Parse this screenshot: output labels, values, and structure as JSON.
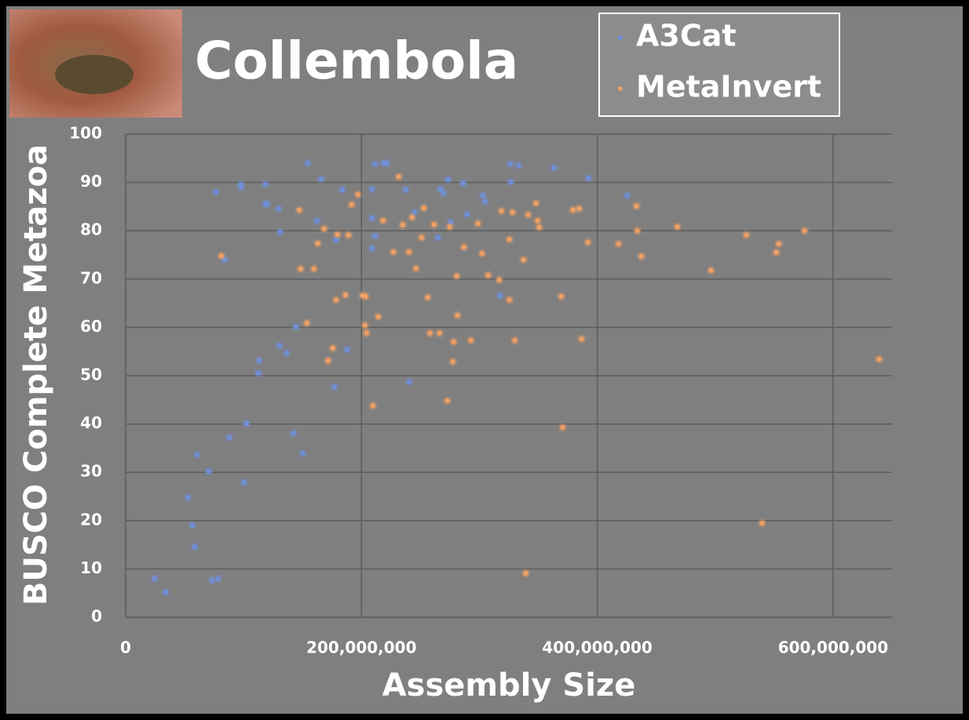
{
  "chart_data": {
    "type": "scatter",
    "title": "Collembola",
    "x_label": "Assembly Size",
    "y_label": "BUSCO Complete Metazoa",
    "xlim": [
      0,
      650000000
    ],
    "ylim": [
      0,
      100
    ],
    "xticks": [
      0,
      {
        "value": 200000000,
        "label": "200,000,000"
      },
      {
        "value": 400000000,
        "label": "400,000,000"
      },
      {
        "value": 600000000,
        "label": "600,000,000"
      }
    ],
    "yticks": [
      0,
      10,
      20,
      30,
      40,
      50,
      60,
      70,
      80,
      90,
      100
    ],
    "grid": true,
    "series": [
      {
        "name": "A3Cat",
        "color": "#6f8fd8",
        "x": [
          24600000,
          34000000,
          53000000,
          56600000,
          58600000,
          60600000,
          70500000,
          73200000,
          78500000,
          76500000,
          83900000,
          87900000,
          97800000,
          97800000,
          100500000,
          102500000,
          113100000,
          112500000,
          118500000,
          118500000,
          119800000,
          129800000,
          131100000,
          130400000,
          136400000,
          142400000,
          144400000,
          150400000,
          154400000,
          162400000,
          165700000,
          178400000,
          177000000,
          183700000,
          187700000,
          209000000,
          209000000,
          209000000,
          211600000,
          211600000,
          219000000,
          221600000,
          237600000,
          240300000,
          244900000,
          264900000,
          266900000,
          269600000,
          273600000,
          275600000,
          286200000,
          289500000,
          302900000,
          304900000,
          317500000,
          326100000,
          326800000,
          333400000,
          363400000,
          392700000,
          425300000
        ],
        "values": [
          8.0,
          5.2,
          24.8,
          19.0,
          14.6,
          33.6,
          30.2,
          7.6,
          8.0,
          88.0,
          74.0,
          37.2,
          89.0,
          89.6,
          27.9,
          40.1,
          53.1,
          50.5,
          89.6,
          85.4,
          85.7,
          84.6,
          79.7,
          56.2,
          54.7,
          38.1,
          60.1,
          33.9,
          94.0,
          82.0,
          90.7,
          78.1,
          47.7,
          88.5,
          55.4,
          88.6,
          82.6,
          76.3,
          78.9,
          93.8,
          94.0,
          94.0,
          88.5,
          48.7,
          83.8,
          78.6,
          88.6,
          87.8,
          90.6,
          81.8,
          89.8,
          83.4,
          87.3,
          86.0,
          66.6,
          93.8,
          90.1,
          93.5,
          93.0,
          90.9,
          87.3
        ]
      },
      {
        "name": "MetaInvert",
        "color": "#f0a064",
        "x": [
          81200000,
          147300000,
          148400000,
          153700000,
          159700000,
          163000000,
          168400000,
          171700000,
          175700000,
          178400000,
          179700000,
          186400000,
          189000000,
          191700000,
          197000000,
          201000000,
          203600000,
          203000000,
          204300000,
          209700000,
          214300000,
          218300000,
          227000000,
          231600000,
          235000000,
          240300000,
          243000000,
          246300000,
          251000000,
          252900000,
          256200000,
          258200000,
          261600000,
          266300000,
          272900000,
          274900000,
          277500000,
          278200000,
          280900000,
          281500000,
          286900000,
          292800000,
          298800000,
          302200000,
          307500000,
          316800000,
          318800000,
          325500000,
          325500000,
          328100000,
          330100000,
          337400000,
          339400000,
          341400000,
          348100000,
          349400000,
          350700000,
          369400000,
          370700000,
          379400000,
          384700000,
          386700000,
          392000000,
          418000000,
          433300000,
          434000000,
          437300000,
          467900000,
          496500000,
          526500000,
          539800000,
          551900000,
          553900000,
          575800000,
          639000000
        ],
        "values": [
          74.8,
          84.3,
          72.1,
          60.9,
          72.1,
          77.4,
          80.4,
          53.1,
          55.7,
          65.7,
          79.2,
          66.7,
          79.1,
          85.4,
          87.5,
          66.6,
          66.4,
          60.4,
          58.8,
          43.8,
          62.2,
          82.1,
          75.6,
          91.2,
          81.2,
          75.6,
          82.8,
          72.2,
          78.6,
          84.7,
          66.2,
          58.8,
          81.3,
          58.8,
          44.8,
          80.8,
          52.9,
          57.0,
          70.6,
          62.5,
          76.6,
          57.3,
          81.5,
          75.3,
          70.8,
          69.8,
          84.1,
          65.7,
          78.2,
          83.8,
          57.3,
          74.0,
          9.1,
          83.3,
          85.7,
          82.1,
          80.7,
          66.4,
          39.3,
          84.3,
          84.6,
          57.6,
          77.6,
          77.3,
          85.1,
          80.0,
          74.7,
          80.8,
          71.8,
          79.1,
          19.5,
          75.5,
          77.3,
          80.0,
          53.4
        ]
      }
    ]
  }
}
